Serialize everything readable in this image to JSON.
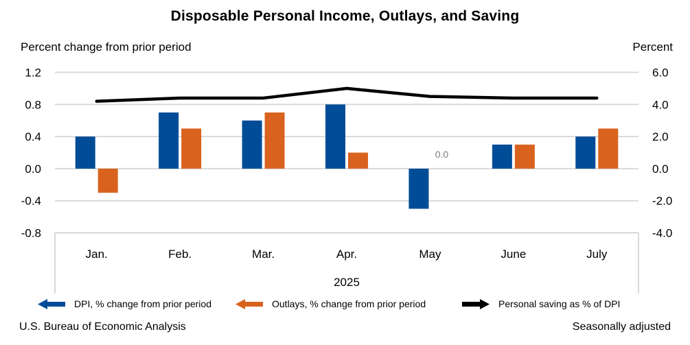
{
  "title": "Disposable Personal Income, Outlays, and Saving",
  "axis_captions": {
    "left": "Percent change from prior period",
    "right": "Percent"
  },
  "legend": [
    {
      "label": "DPI, % change from prior period",
      "color": "#004C97",
      "marker": "left-arrow"
    },
    {
      "label": "Outlays, % change from prior period",
      "color": "#D9631E",
      "marker": "left-arrow"
    },
    {
      "label": "Personal saving as % of DPI",
      "color": "#000000",
      "marker": "right-arrow"
    }
  ],
  "footer": {
    "left": "U.S. Bureau of Economic Analysis",
    "right": "Seasonally adjusted"
  },
  "colors": {
    "dpi_bar": "#004C97",
    "outlays_bar": "#D9631E",
    "saving_line": "#000000",
    "gridline": "#D9D9D9",
    "axis_box_border": "#BFBFBF",
    "zero_data_label": "#808080",
    "text": "#000000"
  },
  "chart_data": {
    "type": "bar",
    "subtype": "grouped bars with overlay line",
    "categories": [
      "Jan.",
      "Feb.",
      "Mar.",
      "Apr.",
      "May",
      "June",
      "July"
    ],
    "year_label": "2025",
    "series": [
      {
        "name": "DPI, % change from prior period",
        "type": "bar",
        "axis": "left",
        "color": "#004C97",
        "values": [
          0.4,
          0.7,
          0.6,
          0.8,
          -0.5,
          0.3,
          0.4
        ]
      },
      {
        "name": "Outlays, % change from prior period",
        "type": "bar",
        "axis": "left",
        "color": "#D9631E",
        "values": [
          -0.3,
          0.5,
          0.7,
          0.2,
          0.0,
          0.3,
          0.5
        ],
        "data_labels": {
          "4": "0.0"
        }
      },
      {
        "name": "Personal saving as % of DPI",
        "type": "line",
        "axis": "right",
        "color": "#000000",
        "values": [
          4.2,
          4.4,
          4.4,
          5.0,
          4.5,
          4.4,
          4.4
        ]
      }
    ],
    "left_axis": {
      "min": -0.8,
      "max": 1.2,
      "ticks": [
        {
          "v": 1.2,
          "label": "1.2"
        },
        {
          "v": 0.8,
          "label": "0.8"
        },
        {
          "v": 0.4,
          "label": "0.4"
        },
        {
          "v": 0.0,
          "label": "0.0"
        },
        {
          "v": -0.4,
          "label": "-0.4"
        },
        {
          "v": -0.8,
          "label": "-0.8"
        }
      ]
    },
    "right_axis": {
      "min": -4.0,
      "max": 6.0,
      "ticks": [
        {
          "v": 6.0,
          "label": "6.0"
        },
        {
          "v": 4.0,
          "label": "4.0"
        },
        {
          "v": 2.0,
          "label": "2.0"
        },
        {
          "v": 0.0,
          "label": "0.0"
        },
        {
          "v": -2.0,
          "label": "-2.0"
        },
        {
          "v": -4.0,
          "label": "-4.0"
        }
      ]
    },
    "grid": true,
    "legend_position": "bottom"
  }
}
